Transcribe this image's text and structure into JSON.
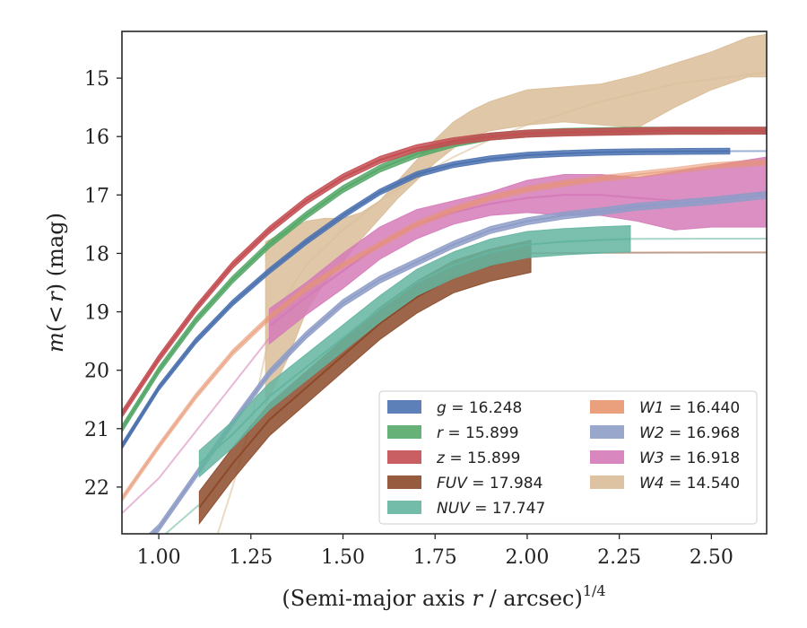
{
  "chart_data": {
    "type": "line",
    "title": "",
    "xlabel": "(Semi-major axis r / arcsec)^1/4",
    "xlabel_parts": {
      "prefix": "(Semi-major axis ",
      "var": "r",
      "suffix": " / arcsec)",
      "sup": "1/4"
    },
    "ylabel": "m(<r) (mag)",
    "ylabel_parts": {
      "var": "m",
      "open": "(",
      "lt": "<",
      "var2": "r",
      "close": ") (mag)"
    },
    "xlim": [
      0.9,
      2.65
    ],
    "ylim": [
      22.8,
      14.2
    ],
    "y_inverted": true,
    "x_ticks": [
      "1.00",
      "1.25",
      "1.50",
      "1.75",
      "2.00",
      "2.25",
      "2.50"
    ],
    "x_tick_values": [
      1.0,
      1.25,
      1.5,
      1.75,
      2.0,
      2.25,
      2.5
    ],
    "y_ticks": [
      "15",
      "16",
      "17",
      "18",
      "19",
      "20",
      "21",
      "22"
    ],
    "y_tick_values": [
      15,
      16,
      17,
      18,
      19,
      20,
      21,
      22
    ],
    "grid": false,
    "legend_placement": "lower-right",
    "series": [
      {
        "name": "g = 16.248",
        "label_var": "g",
        "label_value": "16.248",
        "color": "#4c72b0",
        "x": [
          0.9,
          1.0,
          1.1,
          1.2,
          1.3,
          1.4,
          1.5,
          1.6,
          1.7,
          1.8,
          1.9,
          2.0,
          2.1,
          2.2,
          2.3,
          2.4,
          2.55
        ],
        "y": [
          21.3,
          20.3,
          19.5,
          18.85,
          18.3,
          17.8,
          17.35,
          16.95,
          16.65,
          16.48,
          16.38,
          16.32,
          16.29,
          16.27,
          16.26,
          16.255,
          16.25
        ],
        "band": 0.1,
        "faint_x": [
          2.55,
          2.65
        ],
        "faint_y": [
          16.25,
          16.248
        ]
      },
      {
        "name": "r = 15.899",
        "label_var": "r",
        "label_value": "15.899",
        "color": "#55a868",
        "x": [
          0.9,
          1.0,
          1.1,
          1.2,
          1.3,
          1.4,
          1.5,
          1.6,
          1.7,
          1.8,
          1.9,
          2.0,
          2.1,
          2.2,
          2.3,
          2.4,
          2.5,
          2.65
        ],
        "y": [
          21.0,
          20.0,
          19.15,
          18.45,
          17.85,
          17.35,
          16.9,
          16.55,
          16.3,
          16.12,
          16.0,
          15.95,
          15.92,
          15.91,
          15.9,
          15.9,
          15.9,
          15.899
        ],
        "band": 0.12
      },
      {
        "name": "z = 15.899",
        "label_var": "z",
        "label_value": "15.899",
        "color": "#c44e52",
        "x": [
          0.9,
          1.0,
          1.1,
          1.2,
          1.3,
          1.4,
          1.5,
          1.6,
          1.7,
          1.8,
          1.9,
          2.0,
          2.1,
          2.2,
          2.3,
          2.4,
          2.5,
          2.65
        ],
        "y": [
          20.75,
          19.8,
          18.95,
          18.2,
          17.6,
          17.1,
          16.7,
          16.4,
          16.2,
          16.08,
          16.0,
          15.95,
          15.93,
          15.92,
          15.91,
          15.9,
          15.9,
          15.899
        ],
        "band": 0.12
      },
      {
        "name": "FUV = 17.984",
        "label_var": "FUV",
        "label_value": "17.984",
        "color": "#8c4a2a",
        "x": [
          1.11,
          1.2,
          1.3,
          1.4,
          1.5,
          1.6,
          1.7,
          1.8,
          1.9,
          2.01
        ],
        "y": [
          22.35,
          21.6,
          20.85,
          20.3,
          19.75,
          19.2,
          18.75,
          18.4,
          18.2,
          18.05
        ],
        "band": 0.55,
        "faint_x": [
          2.01,
          2.2,
          2.4,
          2.65
        ],
        "faint_y": [
          18.0,
          17.99,
          17.985,
          17.984
        ]
      },
      {
        "name": "NUV = 17.747",
        "label_var": "NUV",
        "label_value": "17.747",
        "color": "#64b5a0",
        "x": [
          1.11,
          1.2,
          1.3,
          1.4,
          1.5,
          1.6,
          1.7,
          1.8,
          1.9,
          2.0,
          2.1,
          2.2,
          2.28
        ],
        "y": [
          21.6,
          21.1,
          20.45,
          19.95,
          19.45,
          18.95,
          18.5,
          18.2,
          17.98,
          17.85,
          17.8,
          17.77,
          17.75
        ],
        "band": 0.45,
        "faint_x": [
          0.9,
          1.0,
          1.11
        ],
        "faint_y": [
          23.5,
          22.9,
          22.3
        ],
        "faint_x2": [
          2.28,
          2.5,
          2.65
        ],
        "faint_y2": [
          17.75,
          17.748,
          17.747
        ]
      },
      {
        "name": "W1 = 16.440",
        "label_var": "W1",
        "label_value": "16.440",
        "color": "#e8956f",
        "x": [
          0.9,
          1.0,
          1.1,
          1.2,
          1.3,
          1.4,
          1.5,
          1.6,
          1.7,
          1.8,
          1.9,
          2.0,
          2.1,
          2.2,
          2.3,
          2.4,
          2.5,
          2.65
        ],
        "y": [
          22.2,
          21.3,
          20.45,
          19.7,
          19.1,
          18.6,
          18.2,
          17.85,
          17.5,
          17.25,
          17.05,
          16.9,
          16.8,
          16.72,
          16.65,
          16.58,
          16.5,
          16.44
        ],
        "band": 0.1,
        "faint": true
      },
      {
        "name": "W2 = 16.968",
        "label_var": "W2",
        "label_value": "16.968",
        "color": "#8e9dc8",
        "x": [
          0.95,
          1.0,
          1.1,
          1.2,
          1.3,
          1.4,
          1.5,
          1.6,
          1.7,
          1.8,
          1.9,
          2.0,
          2.1,
          2.2,
          2.3,
          2.4,
          2.5,
          2.65
        ],
        "y": [
          23.0,
          22.7,
          21.8,
          20.9,
          20.05,
          19.4,
          18.85,
          18.45,
          18.15,
          17.85,
          17.6,
          17.45,
          17.35,
          17.28,
          17.2,
          17.15,
          17.1,
          17.0
        ],
        "band": 0.12
      },
      {
        "name": "W3 = 16.918",
        "label_var": "W3",
        "label_value": "16.918",
        "color": "#d57bb8",
        "x": [
          1.3,
          1.4,
          1.5,
          1.6,
          1.7,
          1.8,
          1.9,
          2.0,
          2.1,
          2.2,
          2.3,
          2.4,
          2.5,
          2.65
        ],
        "y": [
          19.25,
          18.75,
          18.3,
          17.85,
          17.5,
          17.3,
          17.15,
          17.05,
          17.0,
          17.0,
          17.05,
          17.1,
          17.05,
          16.95
        ],
        "band_upper": [
          18.95,
          18.5,
          18.0,
          17.55,
          17.25,
          17.1,
          16.95,
          16.75,
          16.65,
          16.65,
          16.7,
          16.6,
          16.5,
          16.35
        ],
        "band_lower": [
          19.55,
          19.05,
          18.6,
          18.1,
          17.75,
          17.5,
          17.35,
          17.3,
          17.35,
          17.35,
          17.45,
          17.6,
          17.55,
          17.55
        ],
        "faint_x": [
          0.9,
          1.0,
          1.1,
          1.2,
          1.3
        ],
        "faint_y": [
          22.45,
          21.85,
          21.05,
          20.25,
          19.45
        ]
      },
      {
        "name": "W4 = 14.540",
        "label_var": "W4",
        "label_value": "14.540",
        "color": "#d9bd98",
        "x": [
          1.29,
          1.35,
          1.4,
          1.45,
          1.5,
          1.55,
          1.6,
          1.65,
          1.7,
          1.75,
          1.8,
          1.85,
          1.9,
          2.0,
          2.1,
          2.2,
          2.3,
          2.4,
          2.5,
          2.6,
          2.65
        ],
        "band_upper": [
          17.8,
          17.6,
          17.45,
          17.4,
          17.4,
          17.3,
          17.1,
          16.75,
          16.4,
          16.05,
          15.75,
          15.55,
          15.4,
          15.2,
          15.15,
          15.1,
          14.95,
          14.75,
          14.55,
          14.3,
          14.25
        ],
        "band_lower": [
          20.6,
          19.8,
          19.0,
          18.5,
          18.15,
          17.75,
          17.4,
          17.05,
          16.75,
          16.45,
          16.2,
          16.0,
          15.9,
          15.8,
          15.75,
          15.8,
          15.85,
          15.5,
          15.2,
          14.98,
          14.98
        ],
        "faint_x": [
          1.15,
          1.2,
          1.25,
          1.29,
          1.33,
          1.4,
          1.5,
          1.6,
          1.7,
          1.8,
          1.9,
          2.0,
          2.2,
          2.4,
          2.65
        ],
        "faint_y": [
          23.0,
          22.0,
          20.9,
          19.7,
          18.9,
          18.2,
          17.6,
          17.1,
          16.7,
          16.35,
          16.05,
          15.8,
          15.4,
          15.1,
          14.9
        ]
      }
    ]
  }
}
